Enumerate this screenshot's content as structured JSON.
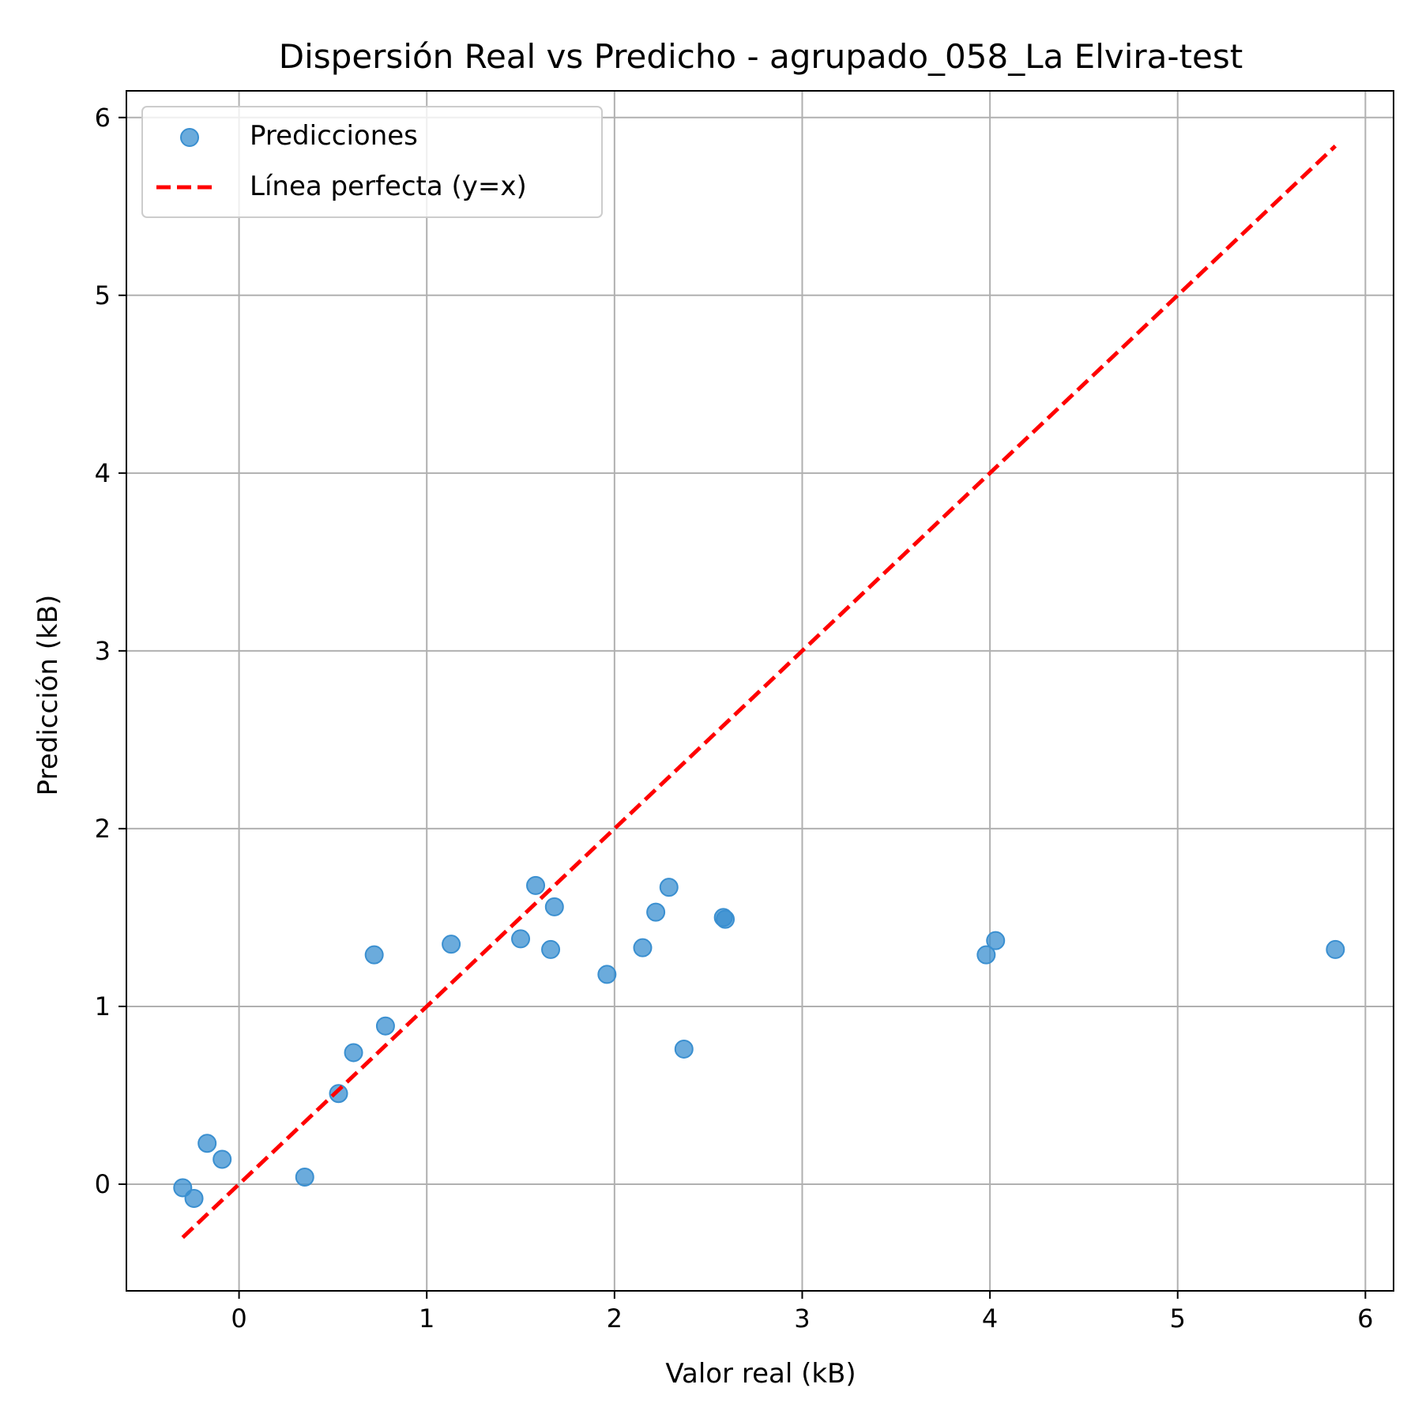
{
  "chart_data": {
    "type": "scatter",
    "title": "Dispersión Real vs Predicho - agrupado_058_La Elvira-test",
    "xlabel": "Valor real (kB)",
    "ylabel": "Predicción (kB)",
    "xlim": [
      -0.6,
      6.15
    ],
    "ylim": [
      -0.6,
      6.15
    ],
    "xticks": [
      0,
      1,
      2,
      3,
      4,
      5,
      6
    ],
    "yticks": [
      0,
      1,
      2,
      3,
      4,
      5,
      6
    ],
    "xtick_labels": [
      "0",
      "1",
      "2",
      "3",
      "4",
      "5",
      "6"
    ],
    "ytick_labels": [
      "0",
      "1",
      "2",
      "3",
      "4",
      "5",
      "6"
    ],
    "grid": true,
    "legend_position": "top-left",
    "series": [
      {
        "name": "Predicciones",
        "kind": "scatter",
        "color": "#3a8fd0",
        "x": [
          -0.3,
          -0.24,
          -0.17,
          -0.09,
          0.35,
          0.53,
          0.61,
          0.72,
          0.78,
          1.13,
          1.5,
          1.58,
          1.66,
          1.68,
          1.96,
          2.15,
          2.22,
          2.29,
          2.37,
          2.58,
          2.59,
          3.98,
          4.03,
          5.84
        ],
        "y": [
          -0.02,
          -0.08,
          0.23,
          0.14,
          0.04,
          0.51,
          0.74,
          1.29,
          0.89,
          1.35,
          1.38,
          1.68,
          1.32,
          1.56,
          1.18,
          1.33,
          1.53,
          1.67,
          0.76,
          1.5,
          1.49,
          1.29,
          1.37,
          1.32
        ]
      },
      {
        "name": "Línea perfecta (y=x)",
        "kind": "line",
        "style": "dashed",
        "color": "#ff0000",
        "x": [
          -0.3,
          5.84
        ],
        "y": [
          -0.3,
          5.84
        ]
      }
    ]
  }
}
